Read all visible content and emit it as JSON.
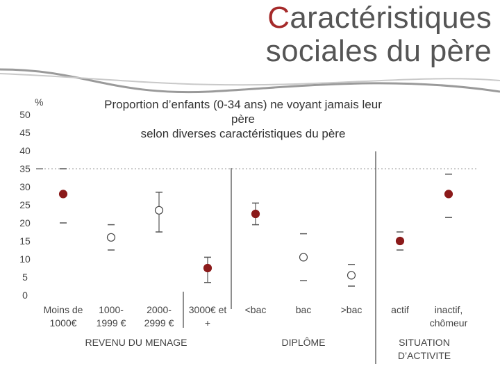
{
  "slide": {
    "title_first_letter": "C",
    "title_rest_line1": "aractéristiques",
    "title_line2": "sociales du père",
    "accent_color": "#a52a2a",
    "text_color": "#555555"
  },
  "chart_data": {
    "type": "scatter",
    "title": "Proportion d’enfants (0-34 ans) ne voyant jamais leur père selon diverses caractéristiques du père",
    "title_lines": [
      "Proportion d’enfants (0-34 ans) ne voyant jamais leur",
      "père",
      "selon diverses caractéristiques du père"
    ],
    "ylabel": "%",
    "ylim": [
      0,
      50
    ],
    "yticks": [
      0,
      5,
      10,
      15,
      20,
      25,
      30,
      35,
      40,
      45,
      50
    ],
    "reference_line": {
      "y": 35,
      "style": "dotted"
    },
    "categories": [
      {
        "label": [
          "Moins de",
          "1000€"
        ],
        "value": 28,
        "low": 20,
        "high": 35,
        "whiskers": false,
        "filled": true
      },
      {
        "label": [
          "1000-",
          "1999 €"
        ],
        "value": 16,
        "low": 12.5,
        "high": 19.5,
        "whiskers": false,
        "filled": false
      },
      {
        "label": [
          "2000-",
          "2999 €"
        ],
        "value": 23.5,
        "low": 17.5,
        "high": 28.5,
        "whiskers": true,
        "filled": false
      },
      {
        "label": [
          "3000€ et",
          "+"
        ],
        "value": 7.5,
        "low": 3.5,
        "high": 10.5,
        "whiskers": true,
        "filled": true
      },
      {
        "label": [
          "<bac"
        ],
        "value": 22.5,
        "low": 19.5,
        "high": 25.5,
        "whiskers": true,
        "filled": true
      },
      {
        "label": [
          "bac"
        ],
        "value": 10.5,
        "low": 4,
        "high": 17,
        "whiskers": false,
        "filled": false
      },
      {
        "label": [
          ">bac"
        ],
        "value": 5.5,
        "low": 2.5,
        "high": 8.5,
        "whiskers": false,
        "filled": false
      },
      {
        "label": [
          "actif"
        ],
        "value": 15,
        "low": 12.5,
        "high": 17.5,
        "whiskers": false,
        "filled": true
      },
      {
        "label": [
          "inactif,",
          "chômeur"
        ],
        "value": 28,
        "low": 21.5,
        "high": 33.5,
        "whiskers": false,
        "filled": true
      }
    ],
    "groups": [
      {
        "label": [
          "REVENU DU MENAGE"
        ],
        "from": 0,
        "to": 3
      },
      {
        "label": [
          "DIPLÔME"
        ],
        "from": 4,
        "to": 6
      },
      {
        "label": [
          "SITUATION",
          "D’ACTIVITE"
        ],
        "from": 7,
        "to": 8
      }
    ],
    "filled_color": "#8b1a1a",
    "open_color": "#ffffff",
    "grid": false
  }
}
